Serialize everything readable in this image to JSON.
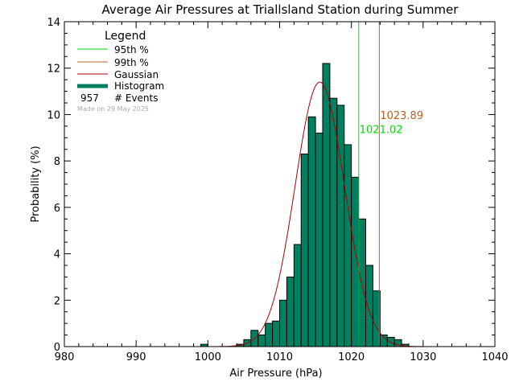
{
  "chart_data": {
    "type": "bar",
    "title": "Average Air Pressures at Triallsland Station during Summer",
    "xlabel": "Air Pressure (hPa)",
    "ylabel": "Probability (%)",
    "xlim": [
      980,
      1040
    ],
    "ylim": [
      0,
      14
    ],
    "xticks": [
      "980",
      "990",
      "1000",
      "1010",
      "1020",
      "1030",
      "1040"
    ],
    "yticks": [
      "0",
      "2",
      "4",
      "6",
      "8",
      "10",
      "12",
      "14"
    ],
    "bin_width": 1,
    "bins": [
      {
        "x0": 999,
        "value": 0.1
      },
      {
        "x0": 1004,
        "value": 0.1
      },
      {
        "x0": 1005,
        "value": 0.3
      },
      {
        "x0": 1006,
        "value": 0.7
      },
      {
        "x0": 1007,
        "value": 0.5
      },
      {
        "x0": 1008,
        "value": 1.0
      },
      {
        "x0": 1009,
        "value": 1.1
      },
      {
        "x0": 1010,
        "value": 2.0
      },
      {
        "x0": 1011,
        "value": 3.0
      },
      {
        "x0": 1012,
        "value": 4.4
      },
      {
        "x0": 1013,
        "value": 8.3
      },
      {
        "x0": 1014,
        "value": 9.9
      },
      {
        "x0": 1015,
        "value": 9.2
      },
      {
        "x0": 1016,
        "value": 12.2
      },
      {
        "x0": 1017,
        "value": 10.7
      },
      {
        "x0": 1018,
        "value": 10.4
      },
      {
        "x0": 1019,
        "value": 8.7
      },
      {
        "x0": 1020,
        "value": 7.3
      },
      {
        "x0": 1021,
        "value": 5.5
      },
      {
        "x0": 1022,
        "value": 3.5
      },
      {
        "x0": 1023,
        "value": 2.4
      },
      {
        "x0": 1024,
        "value": 0.5
      },
      {
        "x0": 1025,
        "value": 0.4
      },
      {
        "x0": 1026,
        "value": 0.3
      },
      {
        "x0": 1027,
        "value": 0.1
      }
    ],
    "gaussian": {
      "mean": 1015.6,
      "sigma": 3.45,
      "peak": 11.4
    },
    "percentiles": [
      {
        "label": "1021.02",
        "value": 1021.02,
        "color": "#00dd00",
        "label_y": 9.2
      },
      {
        "label": "1023.89",
        "value": 1023.89,
        "color": "#b86020",
        "label_y": 9.8
      }
    ],
    "colors": {
      "histogram": "#008060",
      "gaussian": "#aa0000",
      "p95": "#00dd00",
      "p99": "#b86020",
      "made_on": "#aaaaaa"
    },
    "legend": {
      "title": "Legend",
      "position": "top-left",
      "items": [
        {
          "label": "95th %",
          "color": "#00dd00",
          "style": "line"
        },
        {
          "label": "99th %",
          "color": "#b86020",
          "style": "line"
        },
        {
          "label": "Gaussian",
          "color": "#aa0000",
          "style": "line"
        },
        {
          "label": "Histogram",
          "color": "#008060",
          "style": "thick"
        }
      ],
      "events_count": "957",
      "events_label": "# Events",
      "made_on": "Made on 29 May 2025"
    }
  }
}
